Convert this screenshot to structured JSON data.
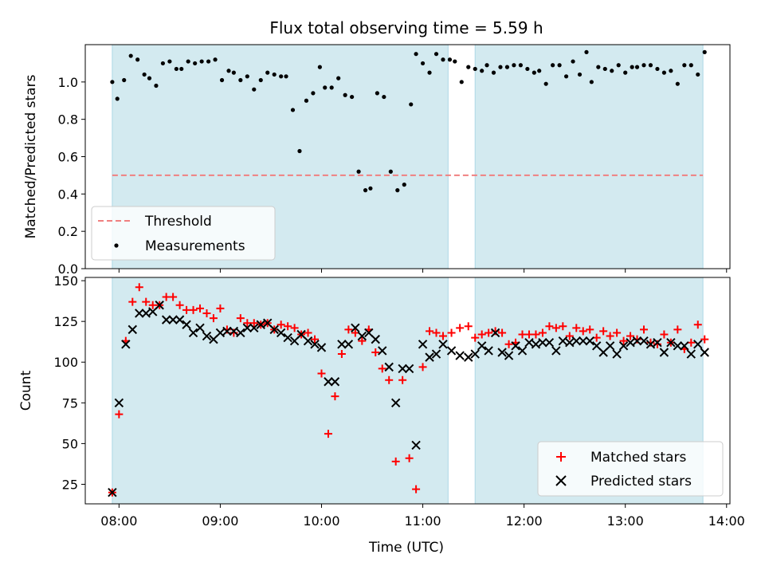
{
  "figure": {
    "title": "Flux total observing time = 5.59 h",
    "xlabel": "Time (UTC)"
  },
  "colors": {
    "shade": "#d3eaf0",
    "shade_edge": "#add8e6",
    "threshold": "#f08080",
    "matched": "#ff0000",
    "predicted": "#000000",
    "measurement": "#000000"
  },
  "chart_data": [
    {
      "type": "scatter",
      "panel": "top",
      "ylabel": "Matched/Predicted stars",
      "xlim": [
        "07:40",
        "14:02"
      ],
      "ylim": [
        0,
        1.2
      ],
      "y_ticks": [
        0.0,
        0.2,
        0.4,
        0.6,
        0.8,
        1.0
      ],
      "y_tick_labels": [
        "0.0",
        "0.2",
        "0.4",
        "0.6",
        "0.8",
        "1.0"
      ],
      "shaded_spans": [
        [
          "07:56",
          "11:15"
        ],
        [
          "11:31",
          "13:46"
        ]
      ],
      "threshold": {
        "name": "Threshold",
        "value": 0.5,
        "x_range": [
          "07:56",
          "13:46"
        ]
      },
      "legend": {
        "position": "lower-left",
        "entries": [
          "Threshold",
          "Measurements"
        ]
      },
      "series": [
        {
          "name": "Measurements",
          "x": [
            "07:56",
            "07:59",
            "08:03",
            "08:07",
            "08:11",
            "08:15",
            "08:18",
            "08:22",
            "08:26",
            "08:30",
            "08:34",
            "08:37",
            "08:41",
            "08:45",
            "08:49",
            "08:53",
            "08:57",
            "09:01",
            "09:05",
            "09:08",
            "09:12",
            "09:16",
            "09:20",
            "09:24",
            "09:28",
            "09:32",
            "09:36",
            "09:39",
            "09:43",
            "09:47",
            "09:51",
            "09:55",
            "09:59",
            "10:02",
            "10:06",
            "10:10",
            "10:14",
            "10:18",
            "10:22",
            "10:26",
            "10:29",
            "10:33",
            "10:37",
            "10:41",
            "10:45",
            "10:49",
            "10:53",
            "10:56",
            "11:00",
            "11:04",
            "11:08",
            "11:12",
            "11:16",
            "11:19",
            "11:23",
            "11:27",
            "11:31",
            "11:35",
            "11:38",
            "11:42",
            "11:46",
            "11:50",
            "11:54",
            "11:58",
            "12:02",
            "12:06",
            "12:09",
            "12:13",
            "12:17",
            "12:21",
            "12:25",
            "12:29",
            "12:33",
            "12:37",
            "12:40",
            "12:44",
            "12:48",
            "12:52",
            "12:56",
            "13:00",
            "13:04",
            "13:07",
            "13:11",
            "13:15",
            "13:19",
            "13:23",
            "13:27",
            "13:31",
            "13:35",
            "13:39",
            "13:43",
            "13:47"
          ],
          "y": [
            1.0,
            0.91,
            1.01,
            1.14,
            1.12,
            1.04,
            1.02,
            0.98,
            1.1,
            1.11,
            1.07,
            1.07,
            1.11,
            1.1,
            1.11,
            1.11,
            1.12,
            1.01,
            1.06,
            1.05,
            1.01,
            1.03,
            0.96,
            1.01,
            1.05,
            1.04,
            1.03,
            1.03,
            0.85,
            0.63,
            0.9,
            0.94,
            1.08,
            0.97,
            0.97,
            1.02,
            0.93,
            0.92,
            0.52,
            0.42,
            0.43,
            0.94,
            0.92,
            0.52,
            0.42,
            0.45,
            0.88,
            1.15,
            1.1,
            1.05,
            1.15,
            1.12,
            1.12,
            1.11,
            1.0,
            1.08,
            1.07,
            1.06,
            1.09,
            1.05,
            1.08,
            1.08,
            1.09,
            1.09,
            1.07,
            1.05,
            1.06,
            0.99,
            1.09,
            1.09,
            1.03,
            1.11,
            1.04,
            1.16,
            1.0,
            1.08,
            1.07,
            1.06,
            1.09,
            1.05,
            1.08,
            1.08,
            1.09,
            1.09,
            1.07,
            1.05,
            1.06,
            0.99,
            1.09,
            1.09,
            1.04,
            1.16
          ]
        }
      ]
    },
    {
      "type": "scatter",
      "panel": "bottom",
      "ylabel": "Count",
      "xlim": [
        "07:40",
        "14:02"
      ],
      "ylim": [
        13,
        152
      ],
      "y_ticks": [
        25,
        50,
        75,
        100,
        125,
        150
      ],
      "y_tick_labels": [
        "25",
        "50",
        "75",
        "100",
        "125",
        "150"
      ],
      "x_tick_labels": [
        "08:00",
        "09:00",
        "10:00",
        "11:00",
        "12:00",
        "13:00",
        "14:00"
      ],
      "shaded_spans": [
        [
          "07:56",
          "11:15"
        ],
        [
          "11:31",
          "13:46"
        ]
      ],
      "legend": {
        "position": "lower-right",
        "entries": [
          "Matched stars",
          "Predicted stars"
        ]
      },
      "series": [
        {
          "name": "Matched stars",
          "marker": "plus",
          "x": [
            "07:56",
            "08:00",
            "08:04",
            "08:08",
            "08:12",
            "08:16",
            "08:20",
            "08:24",
            "08:28",
            "08:32",
            "08:36",
            "08:40",
            "08:44",
            "08:48",
            "08:52",
            "08:56",
            "09:00",
            "09:04",
            "09:08",
            "09:12",
            "09:16",
            "09:20",
            "09:24",
            "09:28",
            "09:32",
            "09:36",
            "09:40",
            "09:44",
            "09:48",
            "09:52",
            "09:56",
            "10:00",
            "10:04",
            "10:08",
            "10:12",
            "10:16",
            "10:20",
            "10:24",
            "10:28",
            "10:32",
            "10:36",
            "10:40",
            "10:44",
            "10:48",
            "10:52",
            "10:56",
            "11:00",
            "11:04",
            "11:08",
            "11:12",
            "11:17",
            "11:22",
            "11:27",
            "11:31",
            "11:35",
            "11:39",
            "11:43",
            "11:47",
            "11:51",
            "11:55",
            "11:59",
            "12:03",
            "12:07",
            "12:11",
            "12:15",
            "12:19",
            "12:23",
            "12:27",
            "12:31",
            "12:35",
            "12:39",
            "12:43",
            "12:47",
            "12:51",
            "12:55",
            "12:59",
            "13:03",
            "13:07",
            "13:11",
            "13:15",
            "13:19",
            "13:23",
            "13:27",
            "13:31",
            "13:35",
            "13:39",
            "13:43",
            "13:47"
          ],
          "y": [
            20,
            68,
            113,
            137,
            146,
            137,
            135,
            135,
            140,
            140,
            135,
            132,
            132,
            133,
            130,
            127,
            133,
            120,
            118,
            127,
            124,
            124,
            123,
            124,
            120,
            123,
            122,
            121,
            117,
            118,
            114,
            93,
            56,
            79,
            105,
            120,
            118,
            113,
            120,
            106,
            96,
            89,
            39,
            89,
            41,
            22,
            97,
            119,
            118,
            116,
            118,
            121,
            122,
            115,
            117,
            118,
            119,
            118,
            111,
            112,
            117,
            117,
            117,
            118,
            122,
            121,
            122,
            116,
            121,
            119,
            120,
            115,
            119,
            116,
            118,
            113,
            116,
            114,
            120,
            112,
            111,
            117,
            112,
            120,
            108,
            112,
            123,
            114
          ]
        },
        {
          "name": "Predicted stars",
          "marker": "x",
          "x": [
            "07:56",
            "08:00",
            "08:04",
            "08:08",
            "08:12",
            "08:16",
            "08:20",
            "08:24",
            "08:28",
            "08:32",
            "08:36",
            "08:40",
            "08:44",
            "08:48",
            "08:52",
            "08:56",
            "09:00",
            "09:04",
            "09:08",
            "09:12",
            "09:16",
            "09:20",
            "09:24",
            "09:28",
            "09:32",
            "09:36",
            "09:40",
            "09:44",
            "09:48",
            "09:52",
            "09:56",
            "10:00",
            "10:04",
            "10:08",
            "10:12",
            "10:16",
            "10:20",
            "10:24",
            "10:28",
            "10:32",
            "10:36",
            "10:40",
            "10:44",
            "10:48",
            "10:52",
            "10:56",
            "11:00",
            "11:04",
            "11:08",
            "11:12",
            "11:17",
            "11:22",
            "11:27",
            "11:31",
            "11:35",
            "11:39",
            "11:43",
            "11:47",
            "11:51",
            "11:55",
            "11:59",
            "12:03",
            "12:07",
            "12:11",
            "12:15",
            "12:19",
            "12:23",
            "12:27",
            "12:31",
            "12:35",
            "12:39",
            "12:43",
            "12:47",
            "12:51",
            "12:55",
            "12:59",
            "13:03",
            "13:07",
            "13:11",
            "13:15",
            "13:19",
            "13:23",
            "13:27",
            "13:31",
            "13:35",
            "13:39",
            "13:43",
            "13:47"
          ],
          "y": [
            20,
            75,
            111,
            120,
            130,
            130,
            131,
            135,
            126,
            126,
            126,
            123,
            118,
            121,
            116,
            114,
            118,
            119,
            119,
            118,
            121,
            121,
            123,
            124,
            120,
            118,
            115,
            113,
            117,
            113,
            111,
            109,
            88,
            88,
            111,
            111,
            121,
            116,
            118,
            114,
            107,
            97,
            75,
            96,
            96,
            49,
            111,
            103,
            105,
            111,
            107,
            104,
            103,
            105,
            110,
            107,
            118,
            106,
            104,
            110,
            107,
            112,
            111,
            112,
            112,
            107,
            113,
            112,
            113,
            113,
            113,
            110,
            106,
            110,
            105,
            110,
            112,
            113,
            113,
            111,
            112,
            106,
            112,
            110,
            110,
            105,
            111,
            106
          ]
        }
      ]
    }
  ]
}
